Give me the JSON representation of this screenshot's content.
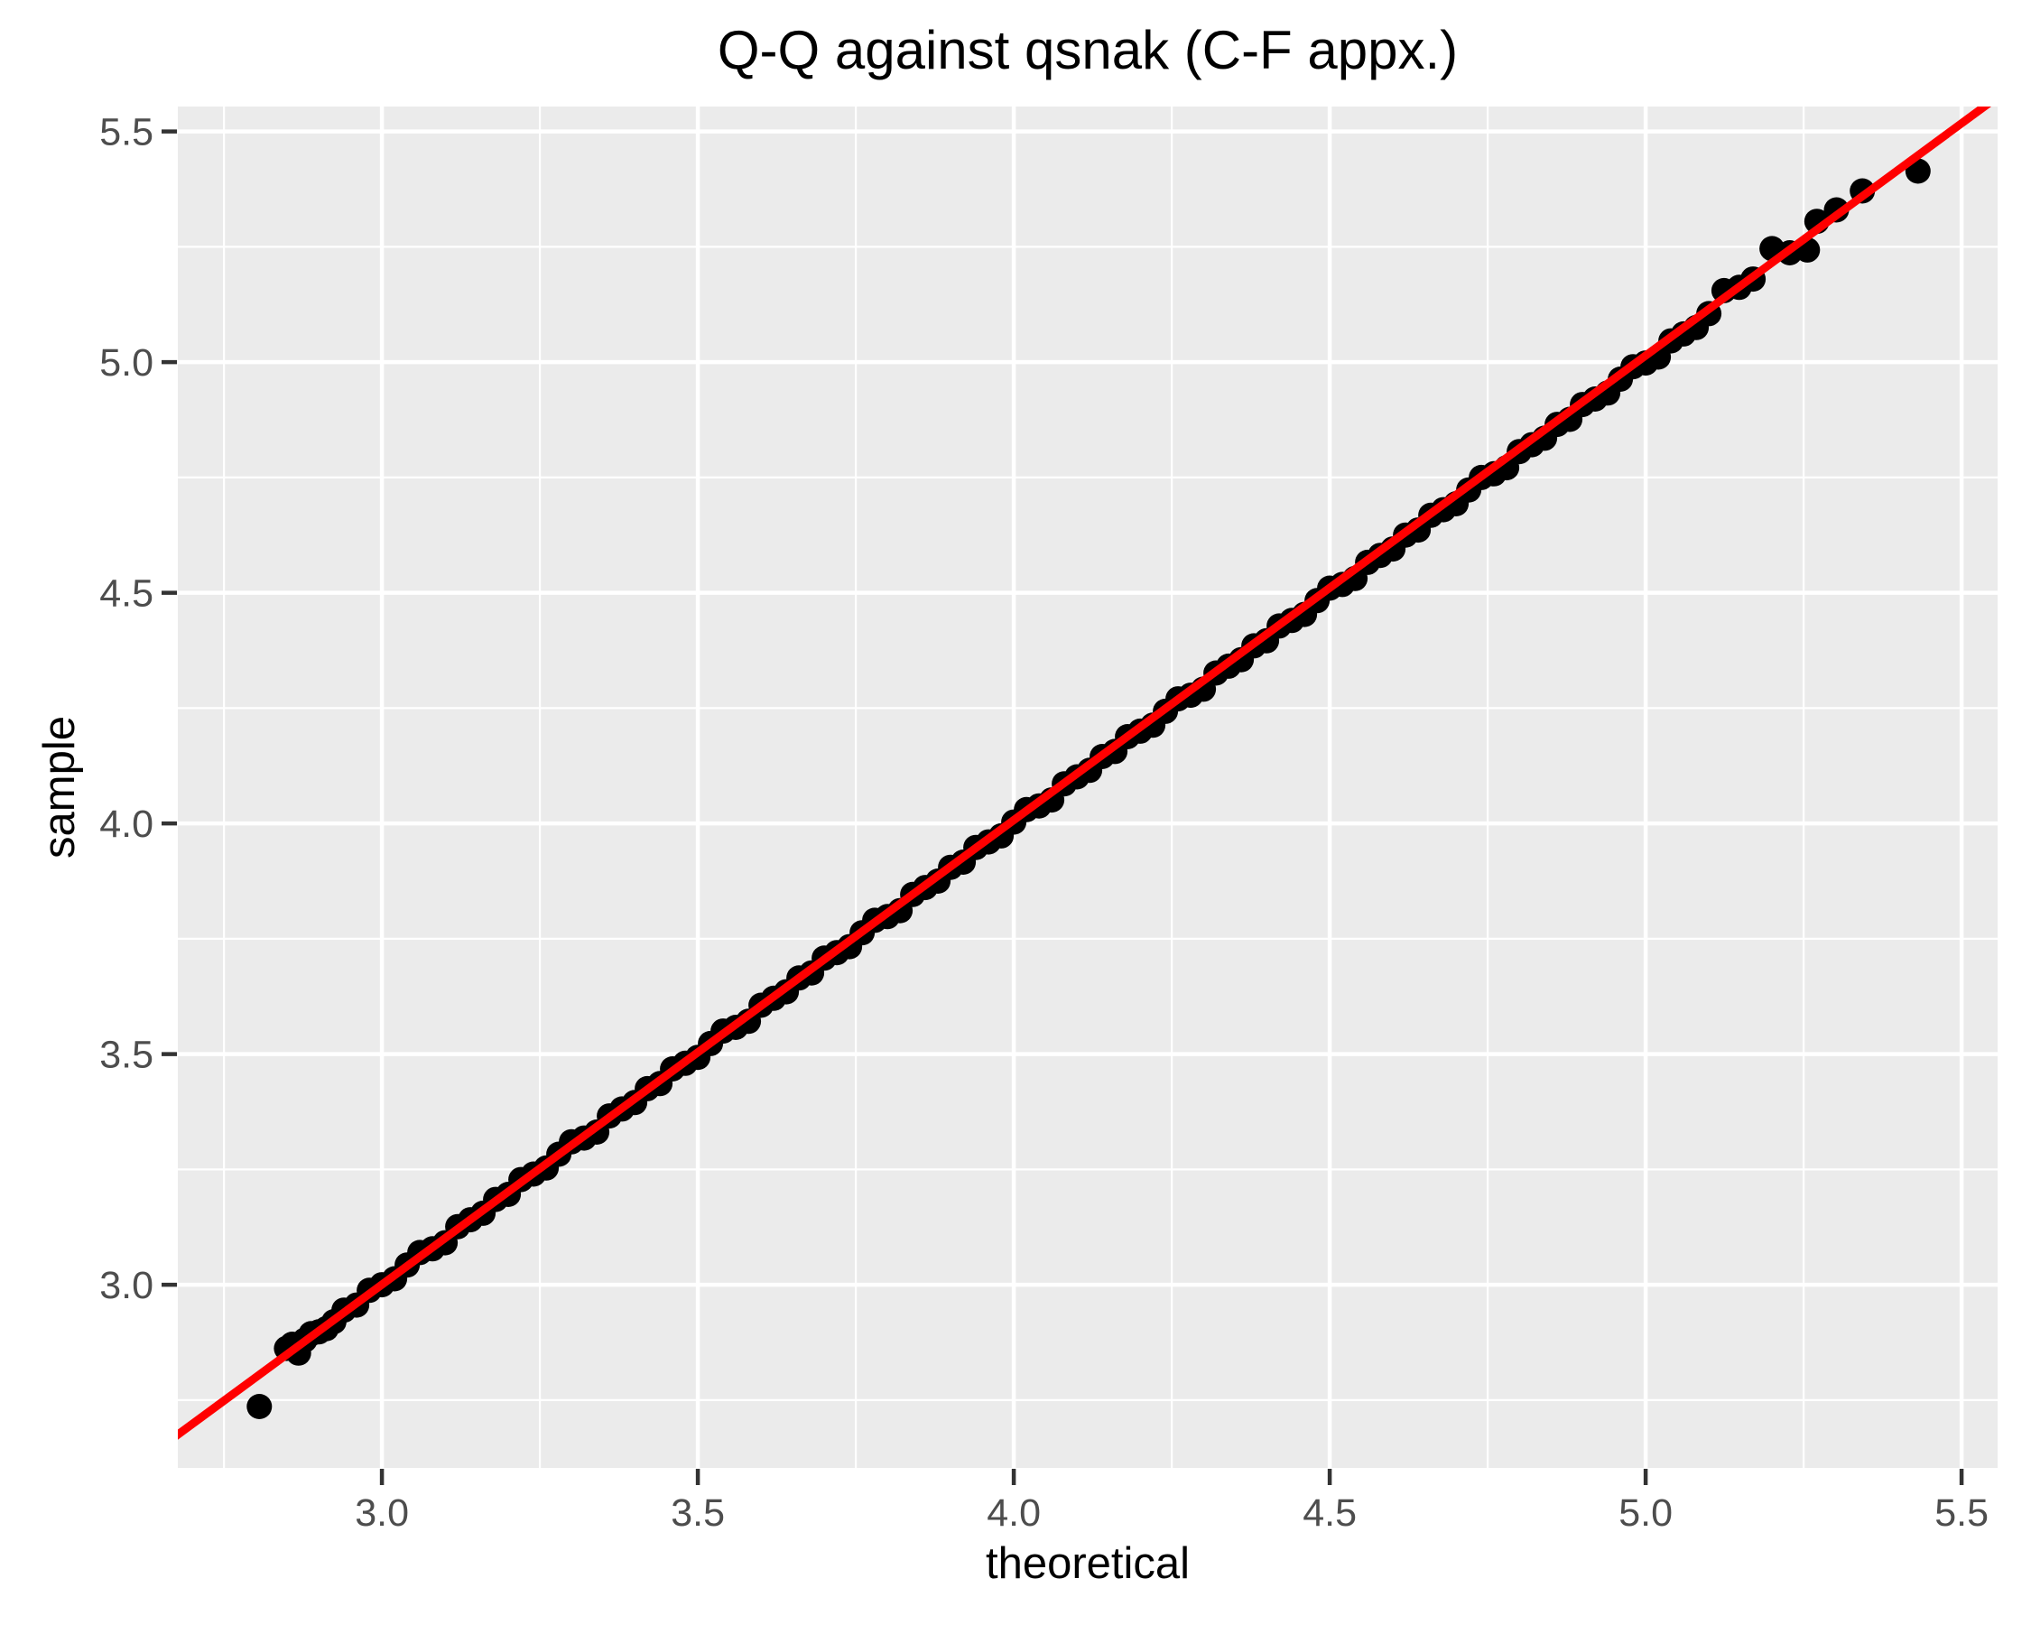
{
  "chart_data": {
    "type": "scatter",
    "title": "Q-Q against qsnak (C-F appx.)",
    "xlabel": "theoretical",
    "ylabel": "sample",
    "xlim": [
      2.677,
      5.557
    ],
    "ylim": [
      2.603,
      5.554
    ],
    "x_ticks": [
      3.0,
      3.5,
      4.0,
      4.5,
      5.0,
      5.5
    ],
    "x_tick_labels": [
      "3.0",
      "3.5",
      "4.0",
      "4.5",
      "5.0",
      "5.5"
    ],
    "y_ticks": [
      3.0,
      3.5,
      4.0,
      4.5,
      5.0,
      5.5
    ],
    "y_tick_labels": [
      "3.0",
      "3.5",
      "4.0",
      "4.5",
      "5.0",
      "5.5"
    ],
    "x_minor_ticks": [
      2.75,
      3.25,
      3.75,
      4.25,
      4.75,
      5.25
    ],
    "y_minor_ticks": [
      2.75,
      3.25,
      3.75,
      4.25,
      4.75,
      5.25
    ],
    "grid": "major+minor",
    "legend": "none",
    "ref_line": {
      "x1": 2.66,
      "y1": 2.658,
      "x2": 5.56,
      "y2": 5.578
    },
    "points": [
      [
        2.806,
        2.736
      ],
      [
        2.849,
        2.862
      ],
      [
        2.858,
        2.871
      ],
      [
        2.868,
        2.852
      ],
      [
        2.878,
        2.88
      ],
      [
        2.888,
        2.894
      ],
      [
        2.9,
        2.898
      ],
      [
        2.912,
        2.905
      ],
      [
        2.924,
        2.92
      ],
      [
        2.94,
        2.945
      ],
      [
        2.96,
        2.956
      ],
      [
        2.98,
        2.988
      ],
      [
        3.0,
        3.0
      ],
      [
        3.02,
        3.013
      ],
      [
        3.04,
        3.043
      ],
      [
        3.06,
        3.07
      ],
      [
        3.08,
        3.078
      ],
      [
        3.1,
        3.091
      ],
      [
        3.12,
        3.126
      ],
      [
        3.14,
        3.141
      ],
      [
        3.16,
        3.155
      ],
      [
        3.18,
        3.185
      ],
      [
        3.2,
        3.196
      ],
      [
        3.22,
        3.228
      ],
      [
        3.24,
        3.24
      ],
      [
        3.26,
        3.253
      ],
      [
        3.28,
        3.283
      ],
      [
        3.3,
        3.31
      ],
      [
        3.32,
        3.318
      ],
      [
        3.34,
        3.331
      ],
      [
        3.36,
        3.366
      ],
      [
        3.38,
        3.381
      ],
      [
        3.4,
        3.395
      ],
      [
        3.42,
        3.425
      ],
      [
        3.44,
        3.436
      ],
      [
        3.46,
        3.468
      ],
      [
        3.48,
        3.48
      ],
      [
        3.5,
        3.493
      ],
      [
        3.52,
        3.523
      ],
      [
        3.54,
        3.55
      ],
      [
        3.56,
        3.558
      ],
      [
        3.58,
        3.571
      ],
      [
        3.6,
        3.606
      ],
      [
        3.62,
        3.621
      ],
      [
        3.64,
        3.635
      ],
      [
        3.66,
        3.665
      ],
      [
        3.68,
        3.676
      ],
      [
        3.7,
        3.708
      ],
      [
        3.72,
        3.72
      ],
      [
        3.74,
        3.733
      ],
      [
        3.76,
        3.763
      ],
      [
        3.78,
        3.79
      ],
      [
        3.8,
        3.798
      ],
      [
        3.82,
        3.811
      ],
      [
        3.84,
        3.846
      ],
      [
        3.86,
        3.861
      ],
      [
        3.88,
        3.875
      ],
      [
        3.9,
        3.905
      ],
      [
        3.92,
        3.916
      ],
      [
        3.94,
        3.948
      ],
      [
        3.96,
        3.96
      ],
      [
        3.98,
        3.973
      ],
      [
        4.0,
        4.003
      ],
      [
        4.02,
        4.03
      ],
      [
        4.04,
        4.038
      ],
      [
        4.06,
        4.051
      ],
      [
        4.08,
        4.086
      ],
      [
        4.1,
        4.101
      ],
      [
        4.12,
        4.115
      ],
      [
        4.14,
        4.145
      ],
      [
        4.16,
        4.156
      ],
      [
        4.18,
        4.188
      ],
      [
        4.2,
        4.2
      ],
      [
        4.22,
        4.213
      ],
      [
        4.24,
        4.243
      ],
      [
        4.26,
        4.27
      ],
      [
        4.28,
        4.278
      ],
      [
        4.3,
        4.291
      ],
      [
        4.32,
        4.326
      ],
      [
        4.34,
        4.341
      ],
      [
        4.36,
        4.355
      ],
      [
        4.38,
        4.385
      ],
      [
        4.4,
        4.396
      ],
      [
        4.42,
        4.428
      ],
      [
        4.44,
        4.44
      ],
      [
        4.46,
        4.453
      ],
      [
        4.48,
        4.483
      ],
      [
        4.5,
        4.51
      ],
      [
        4.52,
        4.518
      ],
      [
        4.54,
        4.531
      ],
      [
        4.56,
        4.566
      ],
      [
        4.58,
        4.581
      ],
      [
        4.6,
        4.595
      ],
      [
        4.62,
        4.625
      ],
      [
        4.64,
        4.636
      ],
      [
        4.66,
        4.668
      ],
      [
        4.68,
        4.68
      ],
      [
        4.7,
        4.693
      ],
      [
        4.72,
        4.723
      ],
      [
        4.74,
        4.75
      ],
      [
        4.76,
        4.758
      ],
      [
        4.78,
        4.771
      ],
      [
        4.8,
        4.806
      ],
      [
        4.82,
        4.821
      ],
      [
        4.84,
        4.835
      ],
      [
        4.86,
        4.865
      ],
      [
        4.88,
        4.876
      ],
      [
        4.9,
        4.908
      ],
      [
        4.92,
        4.92
      ],
      [
        4.94,
        4.933
      ],
      [
        4.96,
        4.963
      ],
      [
        4.98,
        4.99
      ],
      [
        5.0,
        4.998
      ],
      [
        5.02,
        5.011
      ],
      [
        5.04,
        5.046
      ],
      [
        5.06,
        5.061
      ],
      [
        5.08,
        5.075
      ],
      [
        5.1,
        5.105
      ],
      [
        5.124,
        5.155
      ],
      [
        5.148,
        5.162
      ],
      [
        5.17,
        5.18
      ],
      [
        5.2,
        5.246
      ],
      [
        5.228,
        5.237
      ],
      [
        5.256,
        5.243
      ],
      [
        5.271,
        5.305
      ],
      [
        5.302,
        5.33
      ],
      [
        5.343,
        5.371
      ],
      [
        5.431,
        5.414
      ]
    ]
  },
  "style": {
    "panel_bg": "#EBEBEB",
    "grid_color": "#FFFFFF",
    "point_color": "#000000",
    "ref_line_color": "#FF0000",
    "tick_mark_color": "#333333",
    "tick_label_color": "#4D4D4D",
    "title_color": "#000000"
  }
}
